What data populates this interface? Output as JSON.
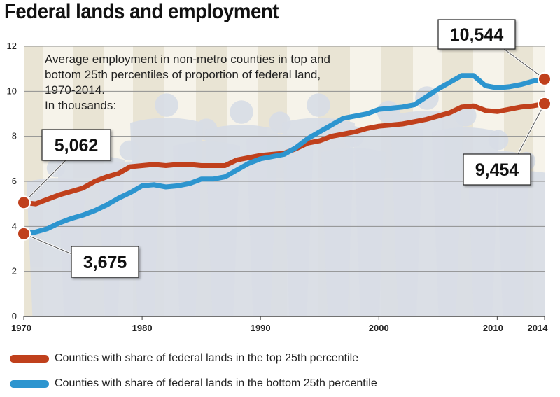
{
  "chart_data": {
    "type": "line",
    "title": "Federal lands and employment",
    "subtitle": [
      "Average employment in non-metro counties in top and",
      "bottom 25th percentiles of proportion of federal land,",
      "1970-2014.",
      "In thousands:"
    ],
    "xlim": [
      1970,
      2014
    ],
    "ylim": [
      0,
      12
    ],
    "x_ticks": [
      1970,
      1980,
      1990,
      2000,
      2010,
      2014
    ],
    "y_ticks": [
      0,
      2,
      4,
      6,
      8,
      10,
      12
    ],
    "grid": true,
    "legend_position": "bottom",
    "x": [
      1970,
      1971,
      1972,
      1973,
      1974,
      1975,
      1976,
      1977,
      1978,
      1979,
      1980,
      1981,
      1982,
      1983,
      1984,
      1985,
      1986,
      1987,
      1988,
      1989,
      1990,
      1991,
      1992,
      1993,
      1994,
      1995,
      1996,
      1997,
      1998,
      1999,
      2000,
      2001,
      2002,
      2003,
      2004,
      2005,
      2006,
      2007,
      2008,
      2009,
      2010,
      2011,
      2012,
      2013,
      2014
    ],
    "series": [
      {
        "name": "Counties with share of federal lands in the top 25th percentile",
        "color": "#c0401c",
        "values": [
          5.06,
          5.0,
          5.2,
          5.4,
          5.55,
          5.7,
          6.0,
          6.2,
          6.35,
          6.65,
          6.7,
          6.75,
          6.7,
          6.75,
          6.75,
          6.7,
          6.7,
          6.7,
          6.95,
          7.05,
          7.15,
          7.2,
          7.25,
          7.45,
          7.7,
          7.8,
          8.0,
          8.1,
          8.2,
          8.35,
          8.45,
          8.5,
          8.55,
          8.65,
          8.75,
          8.9,
          9.05,
          9.3,
          9.35,
          9.15,
          9.1,
          9.2,
          9.3,
          9.35,
          9.454
        ],
        "start_label": "5,062",
        "end_label": "9,454"
      },
      {
        "name": "Counties with share of federal lands in the bottom 25th percentile",
        "color": "#2d95cf",
        "values": [
          3.675,
          3.75,
          3.9,
          4.15,
          4.35,
          4.5,
          4.7,
          4.95,
          5.25,
          5.5,
          5.8,
          5.85,
          5.75,
          5.8,
          5.9,
          6.1,
          6.1,
          6.2,
          6.5,
          6.8,
          7.0,
          7.1,
          7.2,
          7.5,
          7.9,
          8.2,
          8.5,
          8.8,
          8.9,
          9.0,
          9.2,
          9.25,
          9.3,
          9.4,
          9.75,
          10.1,
          10.4,
          10.7,
          10.7,
          10.25,
          10.15,
          10.2,
          10.3,
          10.45,
          10.544
        ],
        "start_label": "3,675",
        "end_label": "10,544"
      }
    ]
  },
  "colors": {
    "top_series": "#c0401c",
    "bottom_series": "#2d95cf",
    "plot_background": "#f3efe3",
    "silhouette": "#d8dde6"
  }
}
